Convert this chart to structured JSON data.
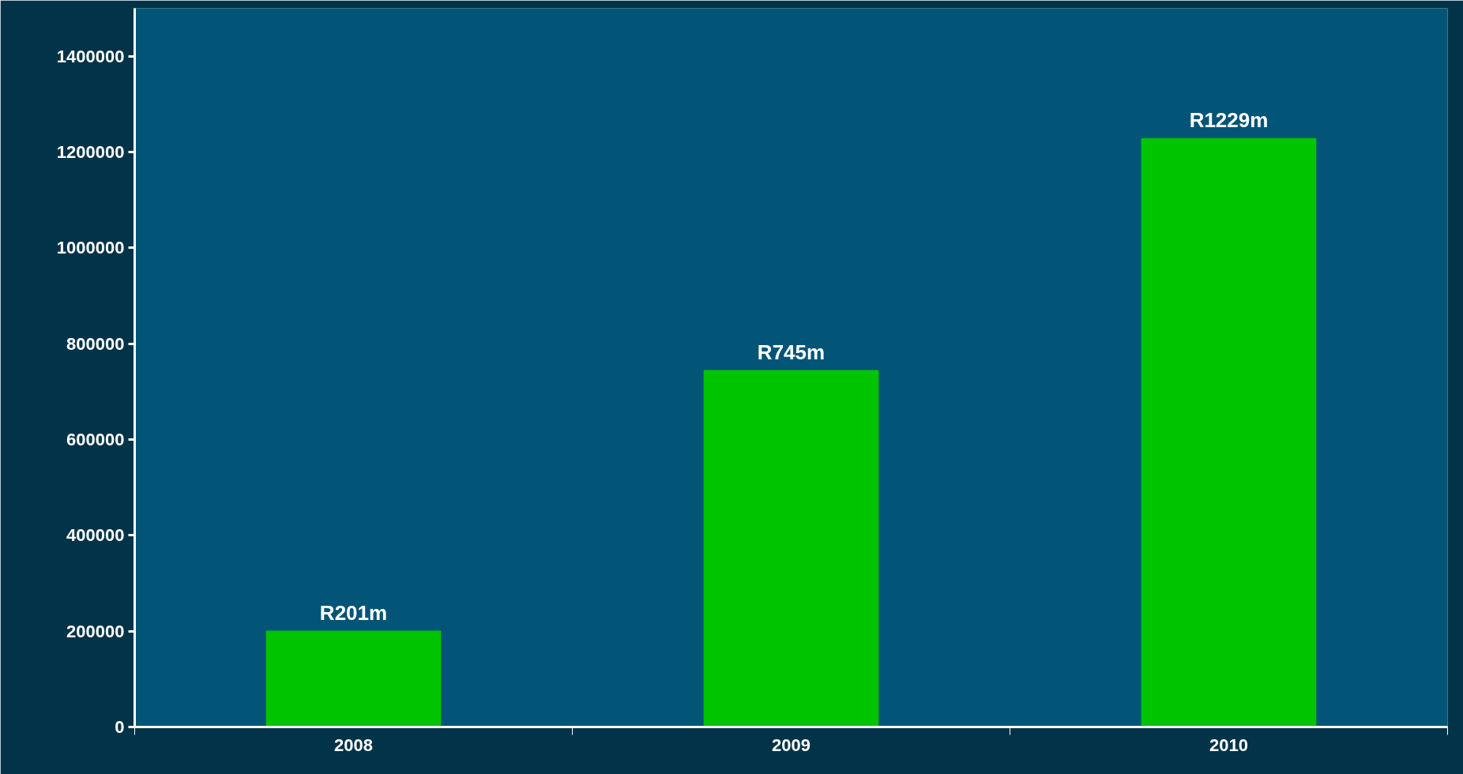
{
  "chart_data": {
    "type": "bar",
    "categories": [
      "2008",
      "2009",
      "2010"
    ],
    "values": [
      201000,
      745000,
      1229000
    ],
    "value_labels": [
      "R201m",
      "R745m",
      "R1229m"
    ],
    "color": "#00c400",
    "ylim": [
      0,
      1500000
    ],
    "yticks": [
      0,
      200000,
      400000,
      600000,
      800000,
      1000000,
      1200000,
      1400000
    ],
    "grid": false
  }
}
